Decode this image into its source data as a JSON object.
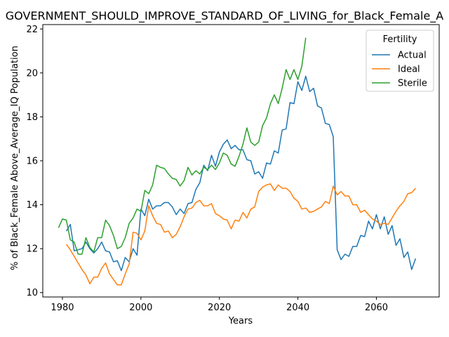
{
  "chart_data": {
    "type": "line",
    "title": "GOVERNMENT_SHOULD_IMPROVE_STANDARD_OF_LIVING_for_Black_Female_A",
    "xlabel": "Years",
    "ylabel": "% of Black_Female Above_Average_IQ Population",
    "xlim": [
      1975,
      2076
    ],
    "ylim": [
      9.8,
      22.2
    ],
    "xticks": [
      1980,
      2000,
      2020,
      2040,
      2060
    ],
    "yticks": [
      10,
      12,
      14,
      16,
      18,
      20,
      22
    ],
    "grid": false,
    "legend": {
      "title": "Fertility",
      "placement": "top-right"
    },
    "series": [
      {
        "name": "Actual",
        "color": "#1f77b4",
        "points": [
          [
            1981,
            12.8
          ],
          [
            1982,
            13.1
          ],
          [
            1983,
            11.9
          ],
          [
            1984,
            11.95
          ],
          [
            1985,
            12.0
          ],
          [
            1986,
            12.3
          ],
          [
            1987,
            12.0
          ],
          [
            1988,
            11.8
          ],
          [
            1989,
            12.0
          ],
          [
            1990,
            12.3
          ],
          [
            1991,
            11.9
          ],
          [
            1992,
            11.85
          ],
          [
            1993,
            11.4
          ],
          [
            1994,
            11.45
          ],
          [
            1995,
            11.0
          ],
          [
            1996,
            11.6
          ],
          [
            1997,
            11.4
          ],
          [
            1998,
            12.0
          ],
          [
            1999,
            11.7
          ],
          [
            2000,
            13.8
          ],
          [
            2001,
            13.5
          ],
          [
            2002,
            14.25
          ],
          [
            2003,
            13.8
          ],
          [
            2004,
            13.95
          ],
          [
            2005,
            13.95
          ],
          [
            2006,
            14.1
          ],
          [
            2007,
            14.1
          ],
          [
            2008,
            13.9
          ],
          [
            2009,
            13.55
          ],
          [
            2010,
            13.8
          ],
          [
            2011,
            13.6
          ],
          [
            2012,
            14.05
          ],
          [
            2013,
            14.1
          ],
          [
            2014,
            14.7
          ],
          [
            2015,
            15.0
          ],
          [
            2016,
            15.8
          ],
          [
            2017,
            15.55
          ],
          [
            2018,
            16.25
          ],
          [
            2019,
            15.75
          ],
          [
            2020,
            16.4
          ],
          [
            2021,
            16.75
          ],
          [
            2022,
            16.95
          ],
          [
            2023,
            16.55
          ],
          [
            2024,
            16.7
          ],
          [
            2025,
            16.5
          ],
          [
            2026,
            16.5
          ],
          [
            2027,
            16.05
          ],
          [
            2028,
            16.0
          ],
          [
            2029,
            15.4
          ],
          [
            2030,
            15.5
          ],
          [
            2031,
            15.2
          ],
          [
            2032,
            15.9
          ],
          [
            2033,
            15.85
          ],
          [
            2034,
            16.45
          ],
          [
            2035,
            16.35
          ],
          [
            2036,
            17.4
          ],
          [
            2037,
            17.45
          ],
          [
            2038,
            18.65
          ],
          [
            2039,
            18.6
          ],
          [
            2040,
            19.6
          ],
          [
            2041,
            19.2
          ],
          [
            2042,
            19.85
          ],
          [
            2043,
            19.15
          ],
          [
            2044,
            19.3
          ],
          [
            2045,
            18.5
          ],
          [
            2046,
            18.4
          ],
          [
            2047,
            17.7
          ],
          [
            2048,
            17.65
          ],
          [
            2049,
            17.1
          ],
          [
            2050,
            11.95
          ],
          [
            2051,
            11.5
          ],
          [
            2052,
            11.75
          ],
          [
            2053,
            11.65
          ],
          [
            2054,
            12.1
          ],
          [
            2055,
            12.1
          ],
          [
            2056,
            12.6
          ],
          [
            2057,
            12.55
          ],
          [
            2058,
            13.25
          ],
          [
            2059,
            12.9
          ],
          [
            2060,
            13.55
          ],
          [
            2061,
            12.9
          ],
          [
            2062,
            13.45
          ],
          [
            2063,
            12.65
          ],
          [
            2064,
            13.05
          ],
          [
            2065,
            12.15
          ],
          [
            2066,
            12.45
          ],
          [
            2067,
            11.6
          ],
          [
            2068,
            11.85
          ],
          [
            2069,
            11.05
          ],
          [
            2070,
            11.55
          ]
        ]
      },
      {
        "name": "Ideal",
        "color": "#ff7f0e",
        "points": [
          [
            1981,
            12.2
          ],
          [
            1982,
            11.95
          ],
          [
            1983,
            11.65
          ],
          [
            1984,
            11.35
          ],
          [
            1985,
            11.05
          ],
          [
            1986,
            10.8
          ],
          [
            1987,
            10.4
          ],
          [
            1988,
            10.7
          ],
          [
            1989,
            10.7
          ],
          [
            1990,
            11.1
          ],
          [
            1991,
            11.35
          ],
          [
            1992,
            10.85
          ],
          [
            1993,
            10.6
          ],
          [
            1994,
            10.35
          ],
          [
            1995,
            10.35
          ],
          [
            1996,
            10.85
          ],
          [
            1997,
            11.3
          ],
          [
            1998,
            12.75
          ],
          [
            1999,
            12.7
          ],
          [
            2000,
            12.4
          ],
          [
            2001,
            12.8
          ],
          [
            2002,
            13.95
          ],
          [
            2003,
            13.5
          ],
          [
            2004,
            13.15
          ],
          [
            2005,
            13.1
          ],
          [
            2006,
            12.75
          ],
          [
            2007,
            12.8
          ],
          [
            2008,
            12.5
          ],
          [
            2009,
            12.65
          ],
          [
            2010,
            13.0
          ],
          [
            2011,
            13.45
          ],
          [
            2012,
            13.8
          ],
          [
            2013,
            13.85
          ],
          [
            2014,
            14.1
          ],
          [
            2015,
            14.2
          ],
          [
            2016,
            13.95
          ],
          [
            2017,
            13.95
          ],
          [
            2018,
            14.05
          ],
          [
            2019,
            13.6
          ],
          [
            2020,
            13.5
          ],
          [
            2021,
            13.35
          ],
          [
            2022,
            13.3
          ],
          [
            2023,
            12.9
          ],
          [
            2024,
            13.3
          ],
          [
            2025,
            13.25
          ],
          [
            2026,
            13.65
          ],
          [
            2027,
            13.4
          ],
          [
            2028,
            13.8
          ],
          [
            2029,
            13.9
          ],
          [
            2030,
            14.6
          ],
          [
            2031,
            14.8
          ],
          [
            2032,
            14.9
          ],
          [
            2033,
            14.95
          ],
          [
            2034,
            14.65
          ],
          [
            2035,
            14.9
          ],
          [
            2036,
            14.75
          ],
          [
            2037,
            14.75
          ],
          [
            2038,
            14.6
          ],
          [
            2039,
            14.3
          ],
          [
            2040,
            14.15
          ],
          [
            2041,
            13.8
          ],
          [
            2042,
            13.85
          ],
          [
            2043,
            13.65
          ],
          [
            2044,
            13.7
          ],
          [
            2045,
            13.8
          ],
          [
            2046,
            13.9
          ],
          [
            2047,
            14.15
          ],
          [
            2048,
            14.05
          ],
          [
            2049,
            14.85
          ],
          [
            2050,
            14.45
          ],
          [
            2051,
            14.6
          ],
          [
            2052,
            14.4
          ],
          [
            2053,
            14.4
          ],
          [
            2054,
            14.0
          ],
          [
            2055,
            14.0
          ],
          [
            2056,
            13.65
          ],
          [
            2057,
            13.75
          ],
          [
            2058,
            13.55
          ],
          [
            2059,
            13.35
          ],
          [
            2060,
            13.25
          ],
          [
            2061,
            13.1
          ],
          [
            2062,
            13.15
          ],
          [
            2063,
            13.1
          ],
          [
            2064,
            13.4
          ],
          [
            2065,
            13.7
          ],
          [
            2066,
            13.95
          ],
          [
            2067,
            14.15
          ],
          [
            2068,
            14.5
          ],
          [
            2069,
            14.55
          ],
          [
            2070,
            14.75
          ]
        ]
      },
      {
        "name": "Sterile",
        "color": "#2ca02c",
        "points": [
          [
            1979,
            12.95
          ],
          [
            1980,
            13.35
          ],
          [
            1981,
            13.3
          ],
          [
            1982,
            12.4
          ],
          [
            1983,
            12.3
          ],
          [
            1984,
            11.75
          ],
          [
            1985,
            11.75
          ],
          [
            1986,
            12.5
          ],
          [
            1987,
            12.05
          ],
          [
            1988,
            11.85
          ],
          [
            1989,
            12.5
          ],
          [
            1990,
            12.5
          ],
          [
            1991,
            13.3
          ],
          [
            1992,
            13.05
          ],
          [
            1993,
            12.6
          ],
          [
            1994,
            12.0
          ],
          [
            1995,
            12.1
          ],
          [
            1996,
            12.5
          ],
          [
            1997,
            13.15
          ],
          [
            1998,
            13.4
          ],
          [
            1999,
            13.8
          ],
          [
            2000,
            13.7
          ],
          [
            2001,
            14.65
          ],
          [
            2002,
            14.5
          ],
          [
            2003,
            14.9
          ],
          [
            2004,
            15.8
          ],
          [
            2005,
            15.7
          ],
          [
            2006,
            15.65
          ],
          [
            2007,
            15.4
          ],
          [
            2008,
            15.2
          ],
          [
            2009,
            15.15
          ],
          [
            2010,
            14.85
          ],
          [
            2011,
            15.1
          ],
          [
            2012,
            15.7
          ],
          [
            2013,
            15.35
          ],
          [
            2014,
            15.55
          ],
          [
            2015,
            15.4
          ],
          [
            2016,
            15.7
          ],
          [
            2017,
            15.6
          ],
          [
            2018,
            15.8
          ],
          [
            2019,
            15.6
          ],
          [
            2020,
            15.9
          ],
          [
            2021,
            16.35
          ],
          [
            2022,
            16.25
          ],
          [
            2023,
            15.85
          ],
          [
            2024,
            15.75
          ],
          [
            2025,
            16.2
          ],
          [
            2026,
            16.75
          ],
          [
            2027,
            17.5
          ],
          [
            2028,
            16.85
          ],
          [
            2029,
            16.7
          ],
          [
            2030,
            16.85
          ],
          [
            2031,
            17.6
          ],
          [
            2032,
            17.95
          ],
          [
            2033,
            18.6
          ],
          [
            2034,
            19.0
          ],
          [
            2035,
            18.6
          ],
          [
            2036,
            19.3
          ],
          [
            2037,
            20.15
          ],
          [
            2038,
            19.7
          ],
          [
            2039,
            20.15
          ],
          [
            2040,
            19.7
          ],
          [
            2041,
            20.3
          ],
          [
            2042,
            21.6
          ]
        ]
      }
    ]
  }
}
